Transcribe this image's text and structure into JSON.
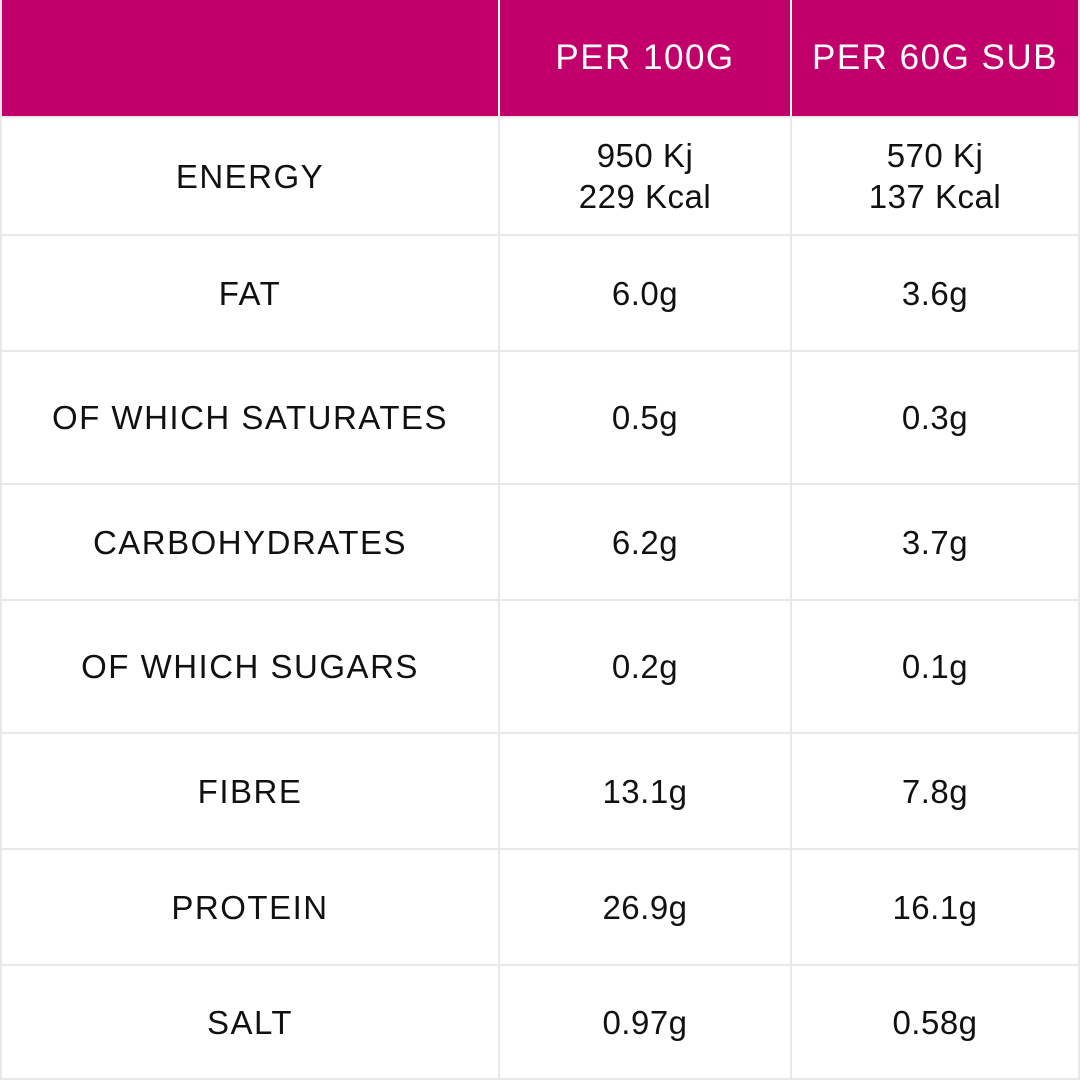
{
  "header": {
    "empty": "",
    "col_per_100g": "PER 100G",
    "col_per_sub": "PER 60G SUB"
  },
  "colors": {
    "header_bg": "#c2006b",
    "header_text": "#ffffff",
    "grid_line": "#e8e8e8",
    "body_text": "#111111"
  },
  "rows": [
    {
      "label": "ENERGY",
      "per100_line1": "950 Kj",
      "per100_line2": "229 Kcal",
      "sub_line1": "570 Kj",
      "sub_line2": "137 Kcal"
    },
    {
      "label": "FAT",
      "per100": "6.0g",
      "sub": "3.6g"
    },
    {
      "label": "OF WHICH SATURATES",
      "per100": "0.5g",
      "sub": "0.3g"
    },
    {
      "label": "CARBOHYDRATES",
      "per100": "6.2g",
      "sub": "3.7g"
    },
    {
      "label": "OF WHICH SUGARS",
      "per100": "0.2g",
      "sub": "0.1g"
    },
    {
      "label": "FIBRE",
      "per100": "13.1g",
      "sub": "7.8g"
    },
    {
      "label": "PROTEIN",
      "per100": "26.9g",
      "sub": "16.1g"
    },
    {
      "label": "SALT",
      "per100": "0.97g",
      "sub": "0.58g"
    }
  ]
}
